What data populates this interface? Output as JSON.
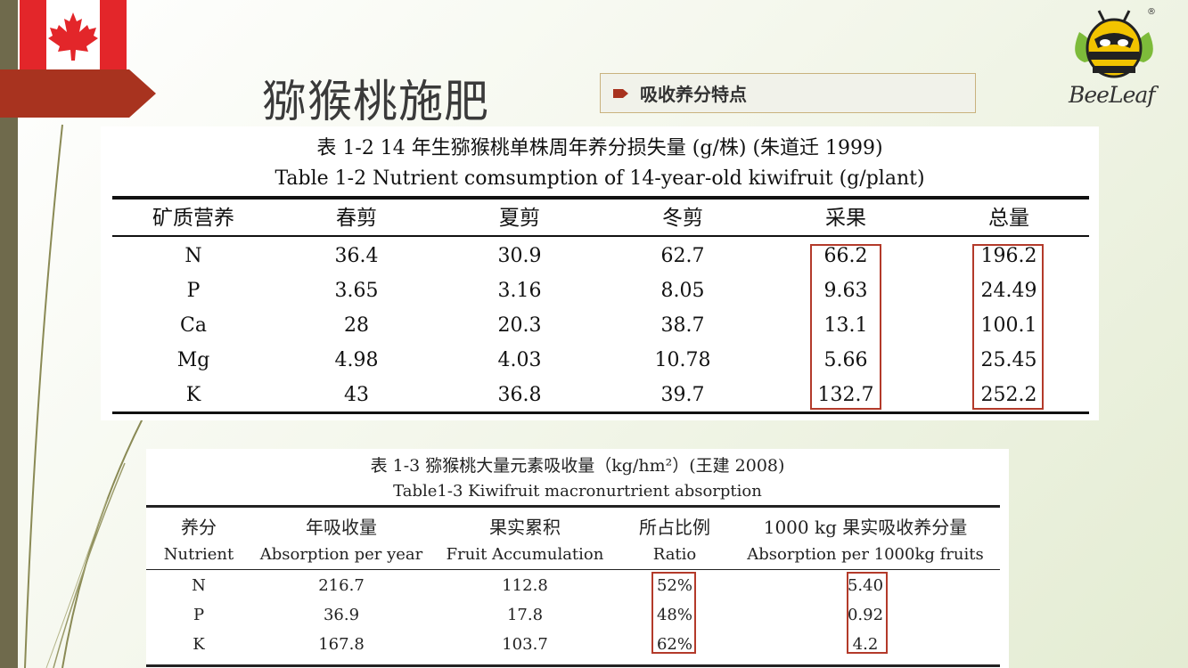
{
  "slide": {
    "title": "猕猴桃施肥",
    "subtitle": "吸收养分特点",
    "logo_text": "BeeLeaf",
    "logo_reg": "®"
  },
  "table1": {
    "caption_cn": "表 1-2 14 年生猕猴桃单株周年养分损失量 (g/株) (朱道迁 1999)",
    "caption_en": "Table 1-2 Nutrient comsumption of 14-year-old kiwifruit (g/plant)",
    "headers": [
      "矿质营养",
      "春剪",
      "夏剪",
      "冬剪",
      "采果",
      "总量"
    ],
    "rows": [
      [
        "N",
        "36.4",
        "30.9",
        "62.7",
        "66.2",
        "196.2"
      ],
      [
        "P",
        "3.65",
        "3.16",
        "8.05",
        "9.63",
        "24.49"
      ],
      [
        "Ca",
        "28",
        "20.3",
        "38.7",
        "13.1",
        "100.1"
      ],
      [
        "Mg",
        "4.98",
        "4.03",
        "10.78",
        "5.66",
        "25.45"
      ],
      [
        "K",
        "43",
        "36.8",
        "39.7",
        "132.7",
        "252.2"
      ]
    ]
  },
  "table2": {
    "caption_cn": "表 1-3 猕猴桃大量元素吸收量（kg/hm²）(王建 2008)",
    "caption_en": "Table1-3 Kiwifruit macronurtrient absorption",
    "headers_cn": [
      "养分",
      "年吸收量",
      "果实累积",
      "所占比例",
      "1000 kg 果实吸收养分量"
    ],
    "headers_en": [
      "Nutrient",
      "Absorption per year",
      "Fruit Accumulation",
      "Ratio",
      "Absorption per 1000kg fruits"
    ],
    "rows": [
      [
        "N",
        "216.7",
        "112.8",
        "52%",
        "5.40"
      ],
      [
        "P",
        "36.9",
        "17.8",
        "48%",
        "0.92"
      ],
      [
        "K",
        "167.8",
        "103.7",
        "62%",
        "4.2"
      ]
    ]
  },
  "colors": {
    "highlight_border": "#b33a2a",
    "banner": "#a8331f",
    "flag_red": "#e3262a"
  }
}
